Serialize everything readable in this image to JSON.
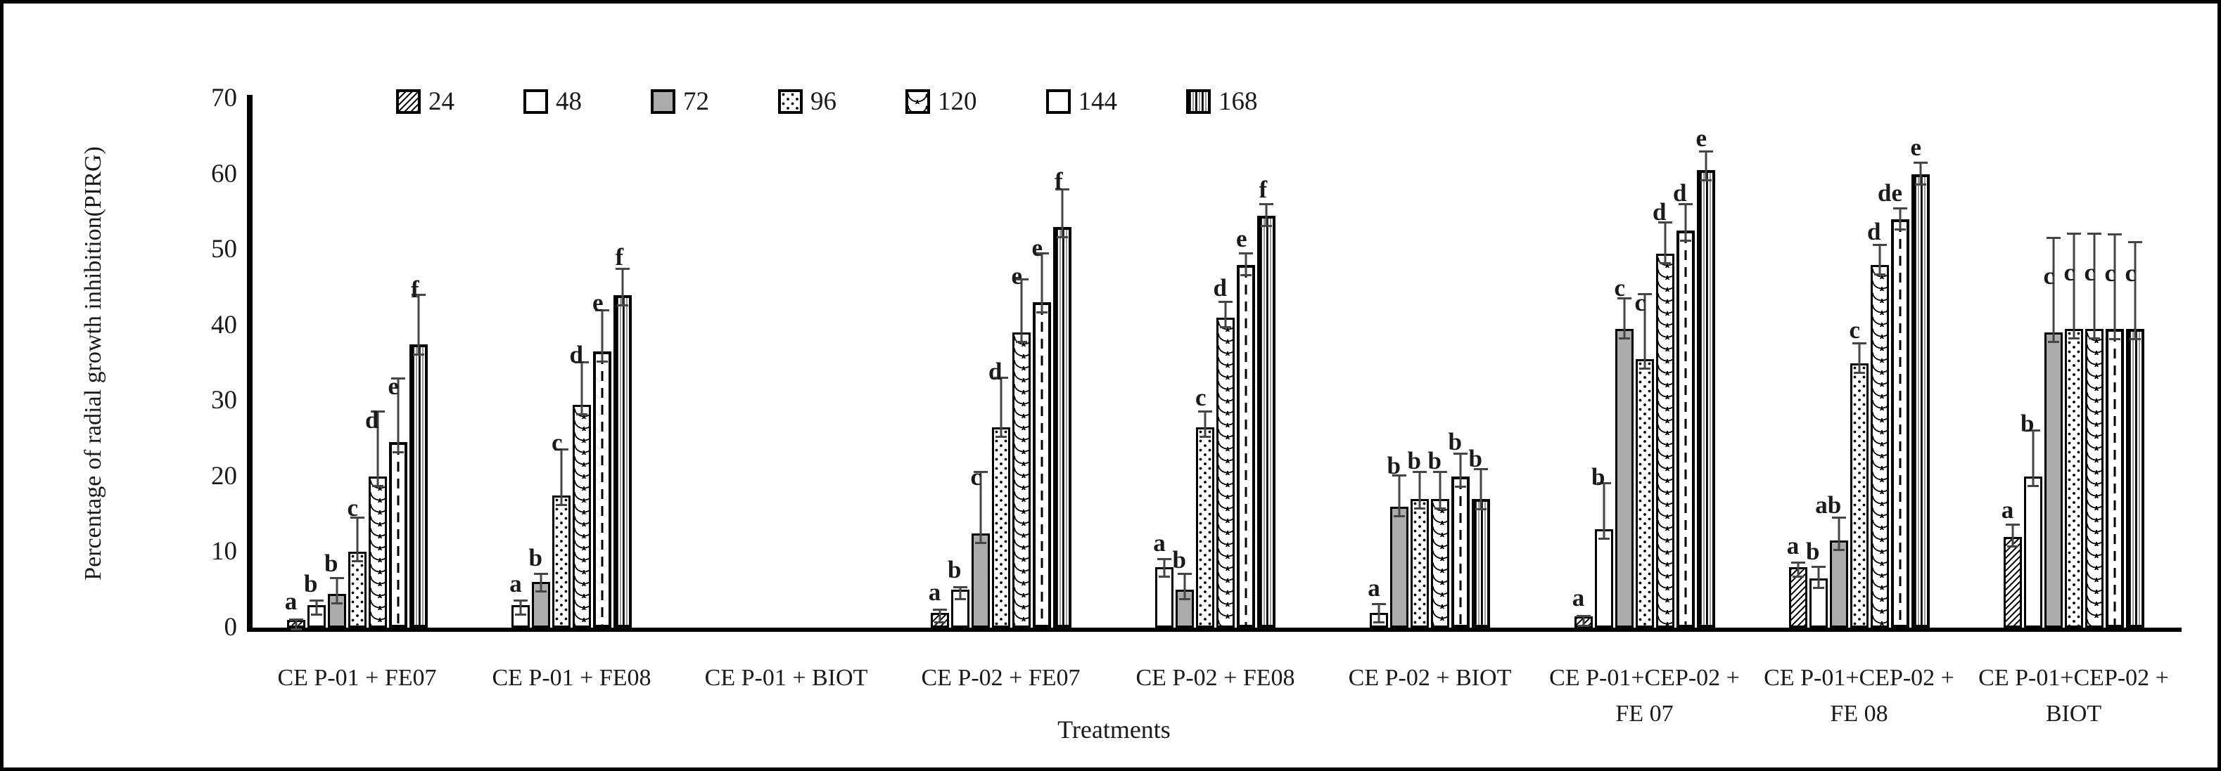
{
  "figure": {
    "ylabel": "Percentage of radial growth inhibition(PIRG)",
    "xlabel": "Treatments"
  },
  "colors": {
    "bar_border": "#000000",
    "gray_fill": "#ababab",
    "error_bar": "#454545",
    "text": "#1a1a1a",
    "background": "#ffffff"
  },
  "chart_data": {
    "type": "bar",
    "title": "",
    "xlabel": "Treatments",
    "ylabel": "Percentage of radial growth inhibition(PIRG)",
    "ylim": [
      0,
      70
    ],
    "yticks": [
      0,
      10,
      20,
      30,
      40,
      50,
      60,
      70
    ],
    "grid": false,
    "legend_position": "top",
    "series": [
      {
        "name": "24",
        "pattern": "diagonal-hatch"
      },
      {
        "name": "48",
        "pattern": "plain-white"
      },
      {
        "name": "72",
        "pattern": "solid-gray"
      },
      {
        "name": "96",
        "pattern": "dots"
      },
      {
        "name": "120",
        "pattern": "fish-scales"
      },
      {
        "name": "144",
        "pattern": "center-dashed-line"
      },
      {
        "name": "168",
        "pattern": "vertical-stripes"
      }
    ],
    "groups": [
      {
        "label": "CE P-01 + FE07",
        "values": [
          1,
          3,
          4.5,
          10,
          20,
          24.5,
          37.5
        ],
        "errors_up": [
          0.5,
          1,
          2.5,
          5,
          9,
          9,
          7
        ],
        "letters": [
          "a",
          "b",
          "b",
          "c",
          "d",
          "e",
          "f"
        ]
      },
      {
        "label": "CE P-01 + FE08",
        "values": [
          0,
          3,
          6,
          17.5,
          29.5,
          36.5,
          44
        ],
        "errors_up": [
          0,
          1,
          1.5,
          6.5,
          6,
          6,
          4
        ],
        "letters": [
          null,
          "a",
          "b",
          "c",
          "d",
          "e",
          "f"
        ]
      },
      {
        "label": "CE P-01 + BIOT",
        "values": [
          0,
          0,
          0,
          0,
          0,
          0,
          0
        ],
        "errors_up": [
          0,
          0,
          0,
          0,
          0,
          0,
          0
        ],
        "letters": [
          null,
          null,
          null,
          null,
          null,
          null,
          null
        ]
      },
      {
        "label": "CE P-02 + FE07",
        "values": [
          2,
          5,
          12.5,
          26.5,
          39,
          43,
          53
        ],
        "errors_up": [
          0.8,
          0.8,
          8.5,
          7,
          7.5,
          7,
          5.5
        ],
        "letters": [
          "a",
          "b",
          "c",
          "d",
          "e",
          "e",
          "f"
        ]
      },
      {
        "label": "CE P-02 + FE08",
        "values": [
          0,
          8,
          5,
          26.5,
          41,
          48,
          54.5
        ],
        "errors_up": [
          0,
          1.5,
          2.5,
          2.5,
          2.5,
          2,
          2
        ],
        "letters": [
          null,
          "a",
          "b",
          "c",
          "d",
          "e",
          "f"
        ]
      },
      {
        "label": "CE P-02 + BIOT",
        "values": [
          0,
          2,
          16,
          17,
          17,
          20,
          17
        ],
        "errors_up": [
          0,
          1.5,
          4.5,
          4,
          4,
          3.5,
          4.5
        ],
        "letters": [
          null,
          "a",
          "b",
          "b",
          "b",
          "b",
          "b"
        ]
      },
      {
        "label": "CE P-01+CEP-02 +\nFE 07",
        "values": [
          1.5,
          13,
          39.5,
          35.5,
          49.5,
          52.5,
          60.5
        ],
        "errors_up": [
          0.5,
          6.5,
          4.5,
          9,
          4.5,
          4,
          3
        ],
        "letters": [
          "a",
          "b",
          "c",
          "c",
          "d",
          "d",
          "e"
        ]
      },
      {
        "label": "CE P-01+CEP-02 +\nFE 08",
        "values": [
          8,
          6.5,
          11.5,
          35,
          48,
          54,
          60
        ],
        "errors_up": [
          1,
          2,
          3.5,
          3,
          3,
          2,
          2
        ],
        "letters": [
          "a",
          "b",
          "ab",
          "c",
          "d",
          "de",
          "e"
        ]
      },
      {
        "label": "CE P-01+CEP-02 +\nBIOT",
        "values": [
          12,
          20,
          39,
          39.5,
          39.5,
          39.5,
          39.5
        ],
        "errors_up": [
          2,
          6.5,
          13,
          13,
          13,
          13,
          12
        ],
        "letters": [
          "a",
          "b",
          "c",
          "c",
          "c",
          "c",
          "c"
        ]
      }
    ]
  }
}
